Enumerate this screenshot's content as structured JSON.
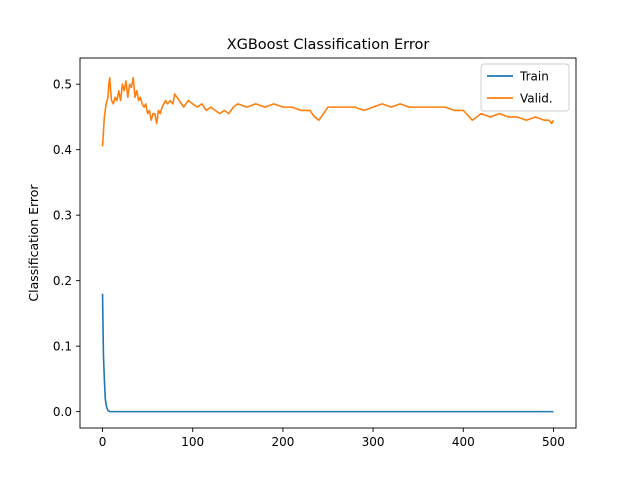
{
  "chart_data": {
    "type": "line",
    "title": "XGBoost Classification Error",
    "xlabel": "",
    "ylabel": "Classification Error",
    "xlim": [
      -25,
      525
    ],
    "ylim": [
      -0.025,
      0.54
    ],
    "xticks": [
      0,
      100,
      200,
      300,
      400,
      500
    ],
    "yticks": [
      0.0,
      0.1,
      0.2,
      0.3,
      0.4,
      0.5
    ],
    "ytick_labels": [
      "0.0",
      "0.1",
      "0.2",
      "0.3",
      "0.4",
      "0.5"
    ],
    "grid": false,
    "legend_position": "top-right",
    "series": [
      {
        "name": "Train",
        "color": "#1f77b4",
        "x": [
          0,
          1,
          2,
          3,
          4,
          5,
          6,
          8,
          10,
          20,
          50,
          100,
          200,
          300,
          400,
          500
        ],
        "y": [
          0.18,
          0.085,
          0.05,
          0.02,
          0.01,
          0.005,
          0.002,
          0.0,
          0.0,
          0.0,
          0.0,
          0.0,
          0.0,
          0.0,
          0.0,
          0.0
        ]
      },
      {
        "name": "Valid.",
        "color": "#ff7f0e",
        "x": [
          0,
          2,
          4,
          6,
          7,
          8,
          9,
          10,
          12,
          14,
          16,
          18,
          20,
          22,
          24,
          26,
          28,
          30,
          32,
          34,
          36,
          38,
          40,
          42,
          44,
          46,
          48,
          50,
          52,
          54,
          56,
          58,
          60,
          62,
          64,
          66,
          68,
          70,
          72,
          75,
          78,
          80,
          85,
          90,
          95,
          100,
          105,
          110,
          115,
          120,
          125,
          130,
          135,
          140,
          145,
          150,
          160,
          170,
          180,
          190,
          200,
          210,
          220,
          230,
          235,
          240,
          245,
          250,
          260,
          270,
          280,
          290,
          300,
          310,
          320,
          330,
          340,
          350,
          360,
          370,
          380,
          390,
          400,
          410,
          420,
          430,
          440,
          450,
          460,
          470,
          480,
          490,
          495,
          498,
          500
        ],
        "y": [
          0.405,
          0.45,
          0.47,
          0.48,
          0.5,
          0.51,
          0.49,
          0.475,
          0.47,
          0.48,
          0.475,
          0.49,
          0.475,
          0.5,
          0.49,
          0.505,
          0.48,
          0.5,
          0.495,
          0.51,
          0.48,
          0.49,
          0.475,
          0.48,
          0.47,
          0.465,
          0.47,
          0.455,
          0.46,
          0.445,
          0.455,
          0.455,
          0.44,
          0.46,
          0.455,
          0.465,
          0.47,
          0.475,
          0.47,
          0.475,
          0.47,
          0.485,
          0.475,
          0.465,
          0.475,
          0.47,
          0.465,
          0.47,
          0.46,
          0.465,
          0.46,
          0.455,
          0.46,
          0.455,
          0.465,
          0.47,
          0.465,
          0.47,
          0.465,
          0.47,
          0.465,
          0.465,
          0.46,
          0.46,
          0.45,
          0.445,
          0.455,
          0.465,
          0.465,
          0.465,
          0.465,
          0.46,
          0.465,
          0.47,
          0.465,
          0.47,
          0.465,
          0.465,
          0.465,
          0.465,
          0.465,
          0.46,
          0.46,
          0.445,
          0.455,
          0.45,
          0.455,
          0.45,
          0.45,
          0.445,
          0.45,
          0.445,
          0.445,
          0.44,
          0.445
        ]
      }
    ]
  }
}
